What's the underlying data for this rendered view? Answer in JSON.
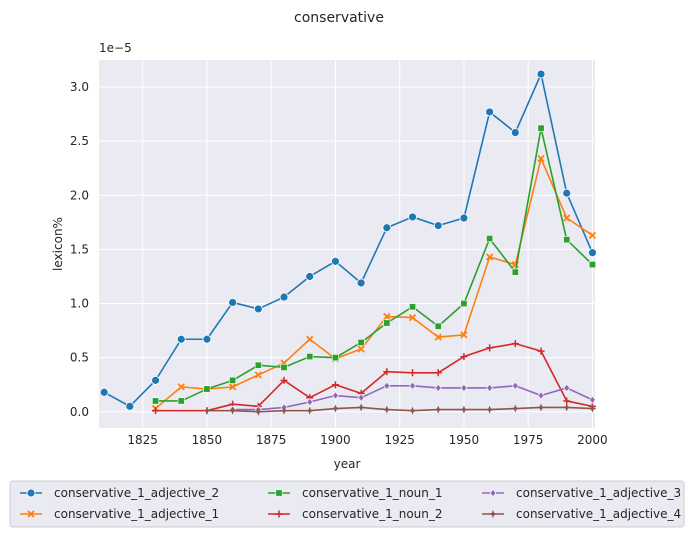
{
  "chart_data": {
    "type": "line",
    "title": "conservative",
    "xlabel": "year",
    "ylabel": "lexicon%",
    "y_offset_label": "1e−5",
    "xlim": [
      1808,
      2001
    ],
    "ylim": [
      -0.15,
      3.25
    ],
    "x_ticks": [
      1825,
      1850,
      1875,
      1900,
      1925,
      1950,
      1975,
      2000
    ],
    "x_tick_labels": [
      "1825",
      "1850",
      "1875",
      "1900",
      "1925",
      "1950",
      "1975",
      "2000"
    ],
    "y_ticks": [
      0.0,
      0.5,
      1.0,
      1.5,
      2.0,
      2.5,
      3.0
    ],
    "y_tick_labels": [
      "0.0",
      "0.5",
      "1.0",
      "1.5",
      "2.0",
      "2.5",
      "3.0"
    ],
    "grid": true,
    "legend_position": "bottom",
    "series": [
      {
        "name": "conservative_1_adjective_2",
        "color": "#1f77b4",
        "marker": "circle",
        "x": [
          1810,
          1820,
          1830,
          1840,
          1850,
          1860,
          1870,
          1880,
          1890,
          1900,
          1910,
          1920,
          1930,
          1940,
          1950,
          1960,
          1970,
          1980,
          1990,
          2000
        ],
        "y": [
          0.18,
          0.05,
          0.29,
          0.67,
          0.67,
          1.01,
          0.95,
          1.06,
          1.25,
          1.39,
          1.19,
          1.7,
          1.8,
          1.72,
          1.79,
          2.77,
          2.58,
          3.12,
          2.02,
          1.47
        ]
      },
      {
        "name": "conservative_1_adjective_1",
        "color": "#ff7f0e",
        "marker": "x",
        "x": [
          1830,
          1840,
          1850,
          1860,
          1870,
          1880,
          1890,
          1900,
          1910,
          1920,
          1930,
          1940,
          1950,
          1960,
          1970,
          1980,
          1990,
          2000
        ],
        "y": [
          0.03,
          0.23,
          0.21,
          0.23,
          0.34,
          0.45,
          0.67,
          0.49,
          0.58,
          0.88,
          0.87,
          0.69,
          0.71,
          1.43,
          1.36,
          2.34,
          1.79,
          1.63
        ]
      },
      {
        "name": "conservative_1_noun_1",
        "color": "#2ca02c",
        "marker": "square",
        "x": [
          1830,
          1840,
          1850,
          1860,
          1870,
          1880,
          1890,
          1900,
          1910,
          1920,
          1930,
          1940,
          1950,
          1960,
          1970,
          1980,
          1990,
          2000
        ],
        "y": [
          0.1,
          0.1,
          0.21,
          0.29,
          0.43,
          0.41,
          0.51,
          0.5,
          0.64,
          0.82,
          0.97,
          0.79,
          1.0,
          1.6,
          1.29,
          2.62,
          1.59,
          1.36
        ]
      },
      {
        "name": "conservative_1_noun_2",
        "color": "#d62728",
        "marker": "plus",
        "x": [
          1830,
          1850,
          1860,
          1870,
          1880,
          1890,
          1900,
          1910,
          1920,
          1930,
          1940,
          1950,
          1960,
          1970,
          1980,
          1990,
          2000
        ],
        "y": [
          0.01,
          0.01,
          0.07,
          0.05,
          0.29,
          0.13,
          0.25,
          0.17,
          0.37,
          0.36,
          0.36,
          0.51,
          0.59,
          0.63,
          0.56,
          0.1,
          0.05
        ]
      },
      {
        "name": "conservative_1_adjective_3",
        "color": "#9467bd",
        "marker": "diamond",
        "x": [
          1860,
          1870,
          1880,
          1890,
          1900,
          1910,
          1920,
          1930,
          1940,
          1950,
          1960,
          1970,
          1980,
          1990,
          2000
        ],
        "y": [
          0.02,
          0.02,
          0.04,
          0.09,
          0.15,
          0.13,
          0.24,
          0.24,
          0.22,
          0.22,
          0.22,
          0.24,
          0.15,
          0.22,
          0.11
        ]
      },
      {
        "name": "conservative_1_adjective_4",
        "color": "#8c564b",
        "marker": "star",
        "x": [
          1850,
          1860,
          1870,
          1880,
          1890,
          1900,
          1910,
          1920,
          1930,
          1940,
          1950,
          1960,
          1970,
          1980,
          1990,
          2000
        ],
        "y": [
          0.01,
          0.01,
          0.0,
          0.01,
          0.01,
          0.03,
          0.04,
          0.02,
          0.01,
          0.02,
          0.02,
          0.02,
          0.03,
          0.04,
          0.04,
          0.03
        ]
      }
    ]
  }
}
